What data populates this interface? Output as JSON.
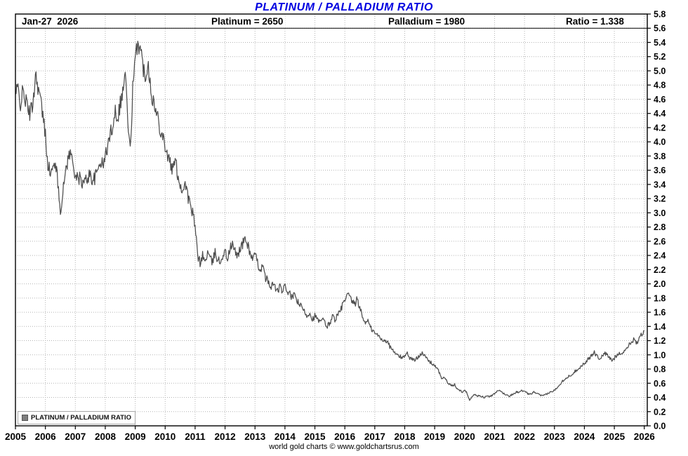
{
  "title": "PLATINUM / PALLADIUM RATIO",
  "header": {
    "date": "Jan-27  2026",
    "platinum": "Platinum = 2650",
    "palladium": "Palladium = 1980",
    "ratio": "Ratio = 1.338"
  },
  "legend": {
    "label": "PLATINUM / PALLADIUM RATIO",
    "swatch_color": "#7f7f7f"
  },
  "footer": "world gold charts © www.goldchartsrus.com",
  "colors": {
    "title": "#0000e0",
    "line": "#4d4d4d",
    "grid": "#b4b4b4",
    "axis": "#000000"
  },
  "chart_data": {
    "type": "line",
    "title": "PLATINUM / PALLADIUM RATIO",
    "xlabel": "",
    "ylabel": "",
    "ylim": [
      0.0,
      5.8
    ],
    "y_tick_step": 0.2,
    "xlim": [
      2005,
      2026.1
    ],
    "x_ticks": [
      2005,
      2006,
      2007,
      2008,
      2009,
      2010,
      2011,
      2012,
      2013,
      2014,
      2015,
      2016,
      2017,
      2018,
      2019,
      2020,
      2021,
      2022,
      2023,
      2024,
      2025,
      2026
    ],
    "x_start": 2005.0,
    "x_step_years": 0.0833333,
    "grid": true,
    "legend_position": "bottom-left",
    "last_point": {
      "date": "Jan-27 2026",
      "value": 1.338
    },
    "series": [
      {
        "name": "PLATINUM / PALLADIUM RATIO",
        "values": [
          4.65,
          4.75,
          4.55,
          4.7,
          4.6,
          4.45,
          4.4,
          4.55,
          4.95,
          4.8,
          4.6,
          4.35,
          4.1,
          3.7,
          3.55,
          3.6,
          3.75,
          3.4,
          3.05,
          3.25,
          3.6,
          3.75,
          3.85,
          3.7,
          3.55,
          3.45,
          3.5,
          3.4,
          3.45,
          3.5,
          3.55,
          3.45,
          3.5,
          3.6,
          3.75,
          3.65,
          3.8,
          3.95,
          4.1,
          4.25,
          4.45,
          4.35,
          4.55,
          4.7,
          5.0,
          4.3,
          3.85,
          4.75,
          5.1,
          5.45,
          5.3,
          5.1,
          4.9,
          5.15,
          4.85,
          4.6,
          4.45,
          4.35,
          4.2,
          4.1,
          3.95,
          3.8,
          3.7,
          3.6,
          3.75,
          3.55,
          3.4,
          3.3,
          3.45,
          3.25,
          3.1,
          3.0,
          2.8,
          2.4,
          2.3,
          2.4,
          2.3,
          2.45,
          2.35,
          2.3,
          2.45,
          2.35,
          2.3,
          2.4,
          2.45,
          2.35,
          2.5,
          2.55,
          2.45,
          2.4,
          2.5,
          2.55,
          2.65,
          2.55,
          2.45,
          2.35,
          2.4,
          2.3,
          2.2,
          2.25,
          2.1,
          2.05,
          1.95,
          2.0,
          1.95,
          1.9,
          1.95,
          1.9,
          1.95,
          1.9,
          1.85,
          1.8,
          1.85,
          1.75,
          1.7,
          1.65,
          1.6,
          1.55,
          1.6,
          1.5,
          1.55,
          1.5,
          1.45,
          1.5,
          1.45,
          1.4,
          1.45,
          1.55,
          1.5,
          1.55,
          1.6,
          1.7,
          1.75,
          1.85,
          1.8,
          1.75,
          1.7,
          1.8,
          1.65,
          1.55,
          1.45,
          1.5,
          1.4,
          1.35,
          1.3,
          1.28,
          1.25,
          1.2,
          1.22,
          1.18,
          1.12,
          1.08,
          1.02,
          1.0,
          0.98,
          0.95,
          1.0,
          1.02,
          0.96,
          0.94,
          0.92,
          0.96,
          1.0,
          1.04,
          0.98,
          0.94,
          0.9,
          0.88,
          0.85,
          0.8,
          0.74,
          0.66,
          0.68,
          0.62,
          0.58,
          0.56,
          0.58,
          0.52,
          0.5,
          0.48,
          0.5,
          0.46,
          0.36,
          0.42,
          0.44,
          0.42,
          0.43,
          0.41,
          0.4,
          0.42,
          0.41,
          0.43,
          0.45,
          0.48,
          0.5,
          0.47,
          0.45,
          0.43,
          0.42,
          0.44,
          0.46,
          0.48,
          0.47,
          0.5,
          0.48,
          0.46,
          0.44,
          0.46,
          0.48,
          0.45,
          0.44,
          0.42,
          0.43,
          0.45,
          0.47,
          0.48,
          0.5,
          0.54,
          0.58,
          0.62,
          0.66,
          0.68,
          0.7,
          0.73,
          0.76,
          0.79,
          0.82,
          0.85,
          0.88,
          0.92,
          0.95,
          1.0,
          1.04,
          0.98,
          0.95,
          0.98,
          1.02,
          1.0,
          0.96,
          0.92,
          0.95,
          1.0,
          1.04,
          1.0,
          1.06,
          1.1,
          1.14,
          1.18,
          1.24,
          1.16,
          1.22,
          1.3,
          1.338
        ]
      }
    ]
  }
}
